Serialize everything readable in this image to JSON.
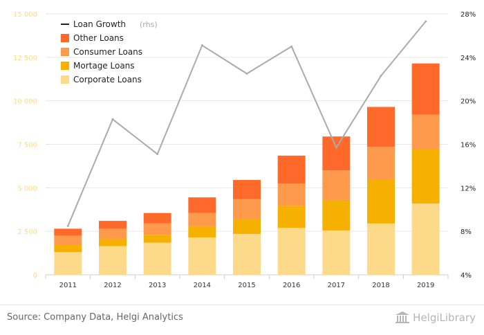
{
  "chart_data": {
    "type": "bar",
    "stacked": true,
    "categories": [
      "2011",
      "2012",
      "2013",
      "2014",
      "2015",
      "2016",
      "2017",
      "2018",
      "2019"
    ],
    "series": [
      {
        "name": "Corporate Loans",
        "color": "#FDD98A",
        "values": [
          1300,
          1650,
          1850,
          2150,
          2350,
          2700,
          2550,
          2950,
          4100
        ]
      },
      {
        "name": "Mortage Loans",
        "color": "#F5B000",
        "values": [
          450,
          400,
          450,
          650,
          850,
          1250,
          1750,
          2500,
          3100
        ]
      },
      {
        "name": "Consumer Loans",
        "color": "#FF9A4D",
        "values": [
          500,
          600,
          650,
          750,
          1150,
          1300,
          1700,
          1900,
          2000
        ]
      },
      {
        "name": "Other Loans",
        "color": "#FF6A2B",
        "values": [
          400,
          450,
          600,
          900,
          1100,
          1600,
          1950,
          2300,
          2950
        ]
      }
    ],
    "line_series": {
      "name": "Loan Growth",
      "legend_suffix": "(rhs)",
      "axis": "right",
      "color": "#aaaaaa",
      "unit": "%",
      "values": [
        8.5,
        18.3,
        15.1,
        25.1,
        22.5,
        25.0,
        15.7,
        22.3,
        27.3
      ]
    },
    "left_axis": {
      "ylim": [
        0,
        15000
      ],
      "ticks": [
        0,
        2500,
        5000,
        7500,
        10000,
        12500,
        15000
      ],
      "tick_labels": [
        "0",
        "2 500",
        "5 000",
        "7 500",
        "10 000",
        "12 500",
        "15 000"
      ]
    },
    "right_axis": {
      "ylim": [
        4,
        28
      ],
      "ticks": [
        4,
        8,
        12,
        16,
        20,
        24,
        28
      ],
      "tick_labels": [
        "4%",
        "8%",
        "12%",
        "16%",
        "20%",
        "24%",
        "28%"
      ]
    },
    "legend_position": "top-left",
    "grid": true
  },
  "legend": {
    "line_label": "Loan Growth",
    "line_suffix": "(rhs)",
    "items": [
      "Other Loans",
      "Consumer Loans",
      "Mortage Loans",
      "Corporate Loans"
    ]
  },
  "footer": {
    "source": "Source: Company Data, Helgi Analytics",
    "brand": "HelgiLibrary"
  },
  "colors": {
    "left_tick": "#FDD98A",
    "right_tick": "#222222",
    "grid": "#e6e6e6"
  },
  "icons": [
    "library-logo-icon"
  ]
}
